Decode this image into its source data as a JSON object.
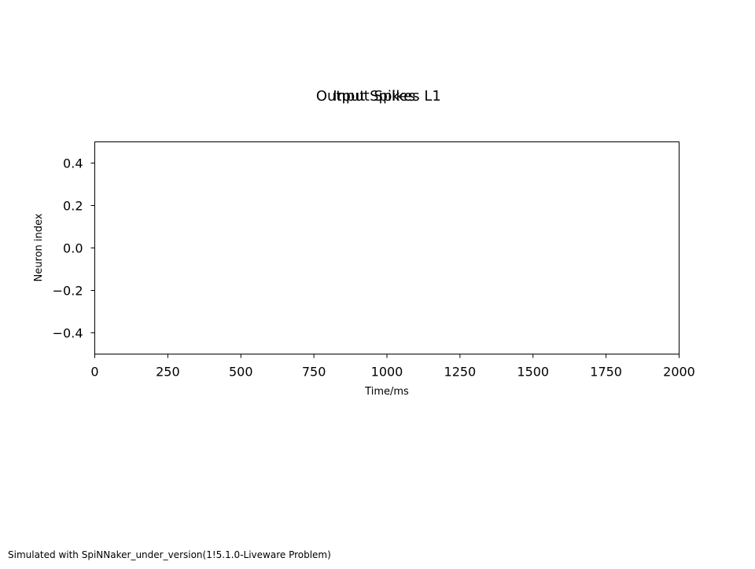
{
  "titles": [
    "Output Spikes",
    "Input Spikes L1"
  ],
  "footer": "Simulated with SpiNNaker_under_version(1!5.1.0-Liveware Problem)",
  "chart_data": {
    "type": "scatter",
    "title": "",
    "xlabel": "Time/ms",
    "ylabel": "Neuron index",
    "xlim": [
      0,
      2000
    ],
    "ylim": [
      -0.5,
      0.5
    ],
    "x_ticks": [
      0,
      250,
      500,
      750,
      1000,
      1250,
      1500,
      1750,
      2000
    ],
    "y_ticks": [
      0.4,
      0.2,
      0.0,
      -0.2,
      -0.4
    ],
    "x_tick_labels": [
      "0",
      "250",
      "500",
      "750",
      "1000",
      "1250",
      "1500",
      "1750",
      "2000"
    ],
    "y_tick_labels": [
      "0.4",
      "0.2",
      "0.0",
      "−0.2",
      "−0.4"
    ],
    "grid": false,
    "series": [
      {
        "x": [],
        "y": []
      }
    ]
  }
}
